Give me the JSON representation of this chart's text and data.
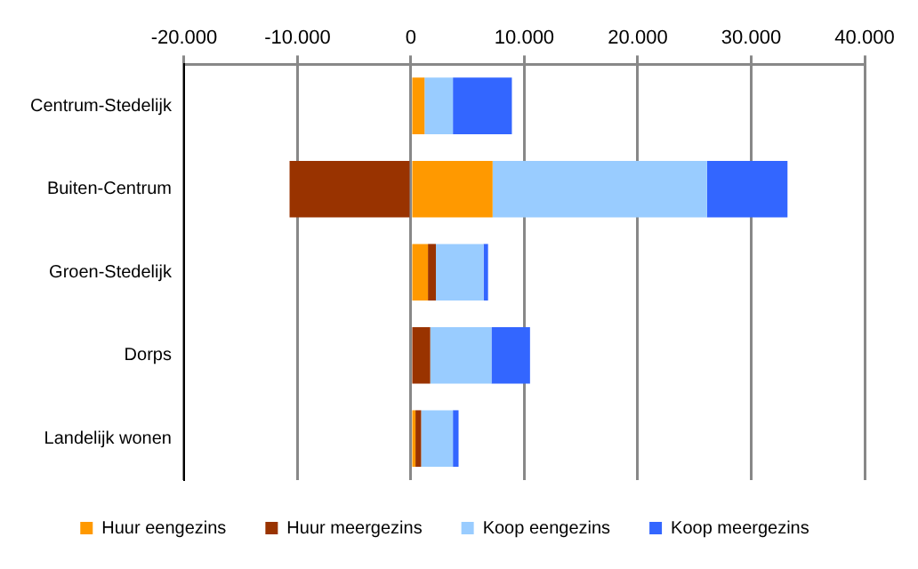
{
  "chart_data": {
    "type": "bar",
    "orientation": "horizontal",
    "stacked": true,
    "categories": [
      "Centrum-Stedelijk",
      "Buiten-Centrum",
      "Groen-Stedelijk",
      "Dorps",
      "Landelijk wonen"
    ],
    "series": [
      {
        "name": "Huur eengezins",
        "color": "#ff9900",
        "values": [
          1200,
          7200,
          1500,
          null,
          400
        ]
      },
      {
        "name": "Huur meergezins",
        "color": "#993300",
        "values": [
          null,
          -10700,
          700,
          1700,
          500
        ]
      },
      {
        "name": "Koop eengezins",
        "color": "#99ccff",
        "values": [
          2500,
          18900,
          4200,
          5400,
          2800
        ]
      },
      {
        "name": "Koop meergezins",
        "color": "#3366ff",
        "values": [
          5200,
          7100,
          400,
          3400,
          500
        ]
      }
    ],
    "xlim": [
      -20000,
      40000
    ],
    "xticks": [
      {
        "value": -20000,
        "label": "-20.000"
      },
      {
        "value": -10000,
        "label": "-10.000"
      },
      0,
      {
        "value": 10000,
        "label": "10.000"
      },
      {
        "value": 20000,
        "label": "20.000"
      },
      {
        "value": 30000,
        "label": "30.000"
      },
      {
        "value": 40000,
        "label": "40.000"
      }
    ],
    "grid": "x",
    "legend": "bottom"
  }
}
